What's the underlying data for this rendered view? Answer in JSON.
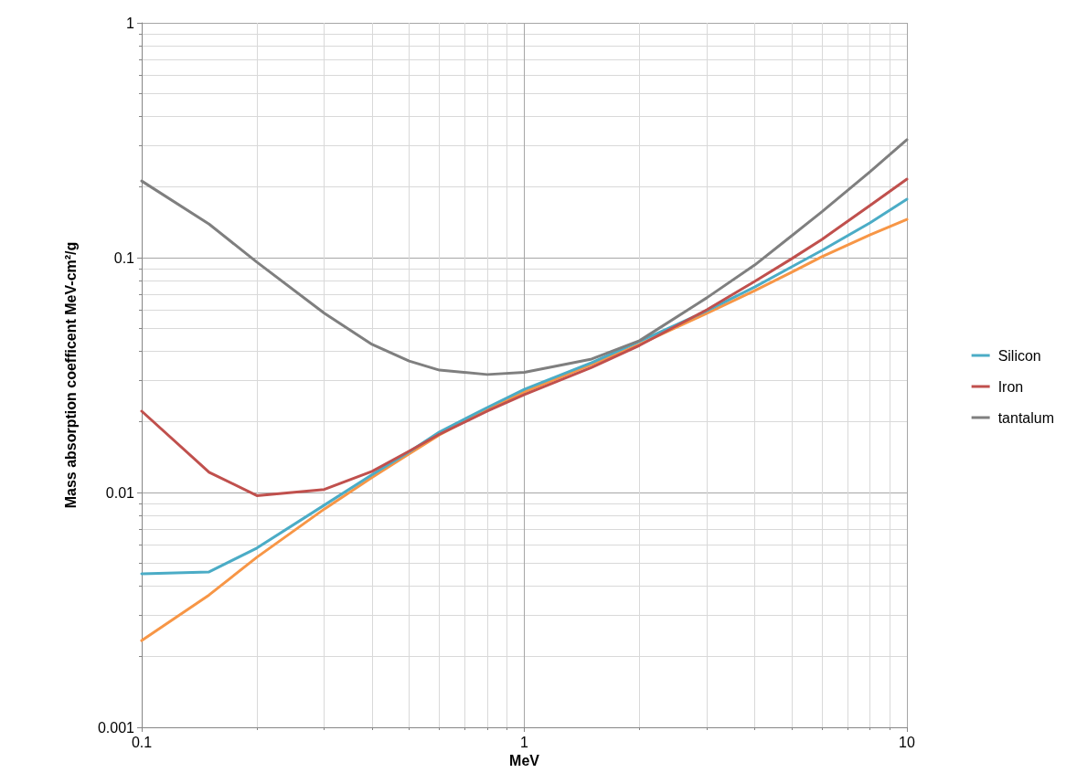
{
  "chart_data": {
    "type": "line",
    "xlabel": "MeV",
    "ylabel": "Mass absorption coefficent MeV-cm²/g",
    "x": [
      0.1,
      0.15,
      0.2,
      0.3,
      0.4,
      0.5,
      0.6,
      0.8,
      1,
      1.5,
      2,
      3,
      4,
      5,
      6,
      8,
      10
    ],
    "series": [
      {
        "color": "#f79646",
        "values": [
          0.00234,
          0.00366,
          0.0053,
          0.0085,
          0.0116,
          0.0146,
          0.0176,
          0.0226,
          0.0268,
          0.0351,
          0.0427,
          0.058,
          0.0724,
          0.0867,
          0.101,
          0.125,
          0.1456
        ]
      },
      {
        "name": "Silicon",
        "color": "#4bacc6",
        "values": [
          0.00451,
          0.00459,
          0.0058,
          0.00883,
          0.0119,
          0.0149,
          0.0181,
          0.023,
          0.0275,
          0.0357,
          0.044,
          0.0594,
          0.075,
          0.0914,
          0.1074,
          0.1406,
          0.1775
        ]
      },
      {
        "name": "Iron",
        "color": "#c0504d",
        "values": [
          0.0222,
          0.0122,
          0.0097,
          0.0103,
          0.0123,
          0.015,
          0.0177,
          0.0222,
          0.0261,
          0.0341,
          0.0423,
          0.06,
          0.0792,
          0.099,
          0.1197,
          0.1667,
          0.216
        ]
      },
      {
        "name": "tantalum",
        "color": "#7f7f7f",
        "values": [
          0.212,
          0.139,
          0.0957,
          0.058,
          0.0427,
          0.0363,
          0.0332,
          0.0318,
          0.0325,
          0.037,
          0.0443,
          0.0675,
          0.093,
          0.124,
          0.157,
          0.232,
          0.318
        ]
      }
    ],
    "log": "xy",
    "xlim": [
      0.1,
      10
    ],
    "xticks": [
      0.1,
      1,
      10
    ],
    "ylim": [
      0.001,
      1
    ],
    "yticks": [
      0.001,
      0.01,
      0.1,
      1
    ],
    "grid": true,
    "legend": "right",
    "marker": "none",
    "line_style": "solid"
  }
}
